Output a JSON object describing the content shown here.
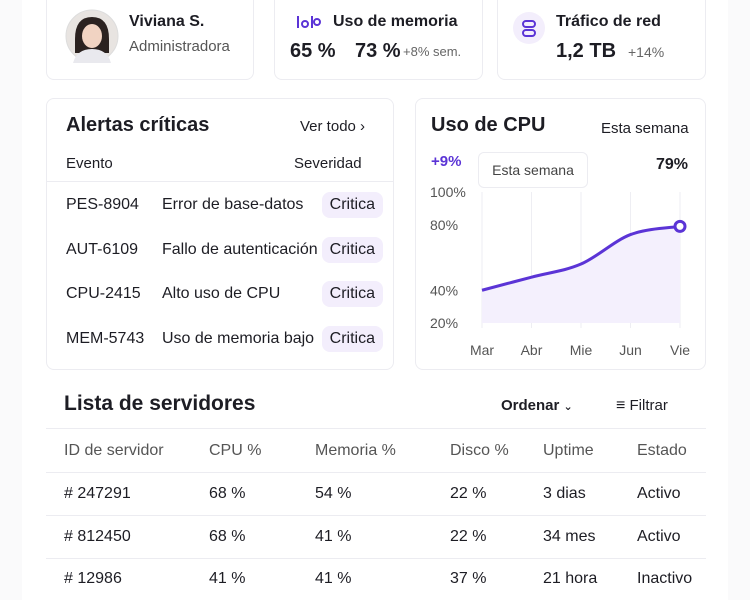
{
  "profile": {
    "name": "Viviana S.",
    "role": "Administradora"
  },
  "memory": {
    "title": "Uso de memoria",
    "value_a": "65 %",
    "value_b": "73 %",
    "change": "+8% sem."
  },
  "network": {
    "title": "Tráfico de red",
    "value": "1,2 TB",
    "change": "+14%"
  },
  "alerts": {
    "title": "Alertas críticas",
    "link": "Ver todo",
    "headers": [
      "Evento",
      "Severidad"
    ],
    "rows": [
      [
        "PES-8904",
        "Error de base-datos",
        "Critica"
      ],
      [
        "AUT-6109",
        "Fallo de autenticación",
        "Critica"
      ],
      [
        "CPU-2415",
        "Alto uso de CPU",
        "Critica"
      ],
      [
        "MEM-5743",
        "Uso de memoria bajo",
        "Critica"
      ]
    ]
  },
  "cpu": {
    "title": "Uso de CPU",
    "period": "Esta semana",
    "change": "+9%",
    "tooltip": "Esta semana",
    "current": "79%",
    "chart_data": {
      "type": "line",
      "categories": [
        "Mar",
        "Abr",
        "Mie",
        "Jun",
        "Vie"
      ],
      "values": [
        40,
        48,
        56,
        74,
        79
      ],
      "color": "#5b34d6",
      "ylim": [
        20,
        100
      ],
      "yticks": [
        {
          "value": 100,
          "label": "100%"
        },
        {
          "value": 80,
          "label": "80%"
        },
        {
          "value": 40,
          "label": "40%"
        },
        {
          "value": 20,
          "label": "20%"
        }
      ],
      "grid": true
    }
  },
  "servers": {
    "title": "Lista de servidores",
    "sort": "Ordenar",
    "filter": "Filtrar",
    "headers": [
      "ID de servidor",
      "CPU %",
      "Memoria %",
      "Disco %",
      "Uptime",
      "Estado"
    ],
    "rows": [
      [
        "# 247291",
        "68 %",
        "54 %",
        "22 %",
        "3 dias",
        "Activo"
      ],
      [
        "# 812450",
        "68 %",
        "41 %",
        "22 %",
        "34 mes",
        "Activo"
      ],
      [
        "# 12986",
        "41 %",
        "41 %",
        "37 %",
        "21 hora",
        "Inactivo"
      ]
    ]
  }
}
